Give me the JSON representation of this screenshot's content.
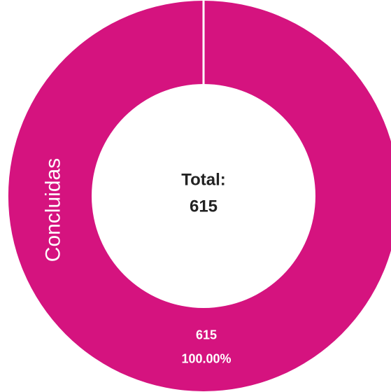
{
  "chart_data": {
    "type": "donut",
    "categories": [
      "Concluidas"
    ],
    "values": [
      615
    ],
    "percentages": [
      100
    ],
    "percentage_labels": [
      "100.00%"
    ],
    "colors": [
      "#d5137f"
    ],
    "center_label": "Total:",
    "total": 615
  }
}
